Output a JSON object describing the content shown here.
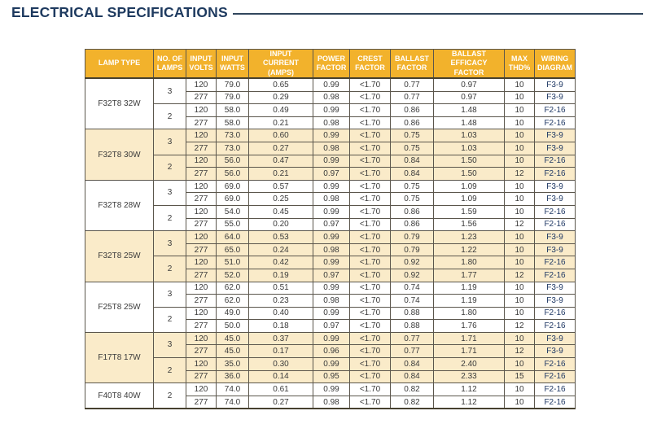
{
  "page": {
    "title": "ELECTRICAL SPECIFICATIONS"
  },
  "colors": {
    "title_navy": "#1E3A5F",
    "header_gold": "#F2B22C",
    "stripe_cream": "#FAEBC9",
    "grid_border": "#5b564c",
    "cell_text": "#3a3a3a",
    "wiring_navy": "#1F3864"
  },
  "table": {
    "columns": [
      "LAMP TYPE",
      "NO. OF\nLAMPS",
      "INPUT\nVOLTS",
      "INPUT\nWATTS",
      "INPUT\nCURRENT\n(AMPS)",
      "POWER\nFACTOR",
      "CREST\nFACTOR",
      "BALLAST\nFACTOR",
      "BALLAST EFFICACY\nFACTOR",
      "MAX\nTHD%",
      "WIRING\nDIAGRAM"
    ],
    "column_keys": [
      "input-volts",
      "input-watts",
      "input-current-amps",
      "power-factor",
      "crest-factor",
      "ballast-factor",
      "ballast-efficacy-factor",
      "max-thd",
      "wiring-diagram"
    ],
    "groups": [
      {
        "lamp_type": "F32T8 32W",
        "shaded": false,
        "subgroups": [
          {
            "lamps": "3",
            "rows": [
              [
                "120",
                "79.0",
                "0.65",
                "0.99",
                "<1.70",
                "0.77",
                "0.97",
                "10",
                "F3-9"
              ],
              [
                "277",
                "79.0",
                "0.29",
                "0.98",
                "<1.70",
                "0.77",
                "0.97",
                "10",
                "F3-9"
              ]
            ]
          },
          {
            "lamps": "2",
            "rows": [
              [
                "120",
                "58.0",
                "0.49",
                "0.99",
                "<1.70",
                "0.86",
                "1.48",
                "10",
                "F2-16"
              ],
              [
                "277",
                "58.0",
                "0.21",
                "0.98",
                "<1.70",
                "0.86",
                "1.48",
                "10",
                "F2-16"
              ]
            ]
          }
        ]
      },
      {
        "lamp_type": "F32T8 30W",
        "shaded": true,
        "subgroups": [
          {
            "lamps": "3",
            "rows": [
              [
                "120",
                "73.0",
                "0.60",
                "0.99",
                "<1.70",
                "0.75",
                "1.03",
                "10",
                "F3-9"
              ],
              [
                "277",
                "73.0",
                "0.27",
                "0.98",
                "<1.70",
                "0.75",
                "1.03",
                "10",
                "F3-9"
              ]
            ]
          },
          {
            "lamps": "2",
            "rows": [
              [
                "120",
                "56.0",
                "0.47",
                "0.99",
                "<1.70",
                "0.84",
                "1.50",
                "10",
                "F2-16"
              ],
              [
                "277",
                "56.0",
                "0.21",
                "0.97",
                "<1.70",
                "0.84",
                "1.50",
                "12",
                "F2-16"
              ]
            ]
          }
        ]
      },
      {
        "lamp_type": "F32T8 28W",
        "shaded": false,
        "subgroups": [
          {
            "lamps": "3",
            "rows": [
              [
                "120",
                "69.0",
                "0.57",
                "0.99",
                "<1.70",
                "0.75",
                "1.09",
                "10",
                "F3-9"
              ],
              [
                "277",
                "69.0",
                "0.25",
                "0.98",
                "<1.70",
                "0.75",
                "1.09",
                "10",
                "F3-9"
              ]
            ]
          },
          {
            "lamps": "2",
            "rows": [
              [
                "120",
                "54.0",
                "0.45",
                "0.99",
                "<1.70",
                "0.86",
                "1.59",
                "10",
                "F2-16"
              ],
              [
                "277",
                "55.0",
                "0.20",
                "0.97",
                "<1.70",
                "0.86",
                "1.56",
                "12",
                "F2-16"
              ]
            ]
          }
        ]
      },
      {
        "lamp_type": "F32T8 25W",
        "shaded": true,
        "subgroups": [
          {
            "lamps": "3",
            "rows": [
              [
                "120",
                "64.0",
                "0.53",
                "0.99",
                "<1.70",
                "0.79",
                "1.23",
                "10",
                "F3-9"
              ],
              [
                "277",
                "65.0",
                "0.24",
                "0.98",
                "<1.70",
                "0.79",
                "1.22",
                "10",
                "F3-9"
              ]
            ]
          },
          {
            "lamps": "2",
            "rows": [
              [
                "120",
                "51.0",
                "0.42",
                "0.99",
                "<1.70",
                "0.92",
                "1.80",
                "10",
                "F2-16"
              ],
              [
                "277",
                "52.0",
                "0.19",
                "0.97",
                "<1.70",
                "0.92",
                "1.77",
                "12",
                "F2-16"
              ]
            ]
          }
        ]
      },
      {
        "lamp_type": "F25T8 25W",
        "shaded": false,
        "subgroups": [
          {
            "lamps": "3",
            "rows": [
              [
                "120",
                "62.0",
                "0.51",
                "0.99",
                "<1.70",
                "0.74",
                "1.19",
                "10",
                "F3-9"
              ],
              [
                "277",
                "62.0",
                "0.23",
                "0.98",
                "<1.70",
                "0.74",
                "1.19",
                "10",
                "F3-9"
              ]
            ]
          },
          {
            "lamps": "2",
            "rows": [
              [
                "120",
                "49.0",
                "0.40",
                "0.99",
                "<1.70",
                "0.88",
                "1.80",
                "10",
                "F2-16"
              ],
              [
                "277",
                "50.0",
                "0.18",
                "0.97",
                "<1.70",
                "0.88",
                "1.76",
                "12",
                "F2-16"
              ]
            ]
          }
        ]
      },
      {
        "lamp_type": "F17T8 17W",
        "shaded": true,
        "subgroups": [
          {
            "lamps": "3",
            "rows": [
              [
                "120",
                "45.0",
                "0.37",
                "0.99",
                "<1.70",
                "0.77",
                "1.71",
                "10",
                "F3-9"
              ],
              [
                "277",
                "45.0",
                "0.17",
                "0.96",
                "<1.70",
                "0.77",
                "1.71",
                "12",
                "F3-9"
              ]
            ]
          },
          {
            "lamps": "2",
            "rows": [
              [
                "120",
                "35.0",
                "0.30",
                "0.99",
                "<1.70",
                "0.84",
                "2.40",
                "10",
                "F2-16"
              ],
              [
                "277",
                "36.0",
                "0.14",
                "0.95",
                "<1.70",
                "0.84",
                "2.33",
                "15",
                "F2-16"
              ]
            ]
          }
        ]
      },
      {
        "lamp_type": "F40T8 40W",
        "shaded": false,
        "subgroups": [
          {
            "lamps": "2",
            "rows": [
              [
                "120",
                "74.0",
                "0.61",
                "0.99",
                "<1.70",
                "0.82",
                "1.12",
                "10",
                "F2-16"
              ],
              [
                "277",
                "74.0",
                "0.27",
                "0.98",
                "<1.70",
                "0.82",
                "1.12",
                "10",
                "F2-16"
              ]
            ]
          }
        ]
      }
    ]
  }
}
